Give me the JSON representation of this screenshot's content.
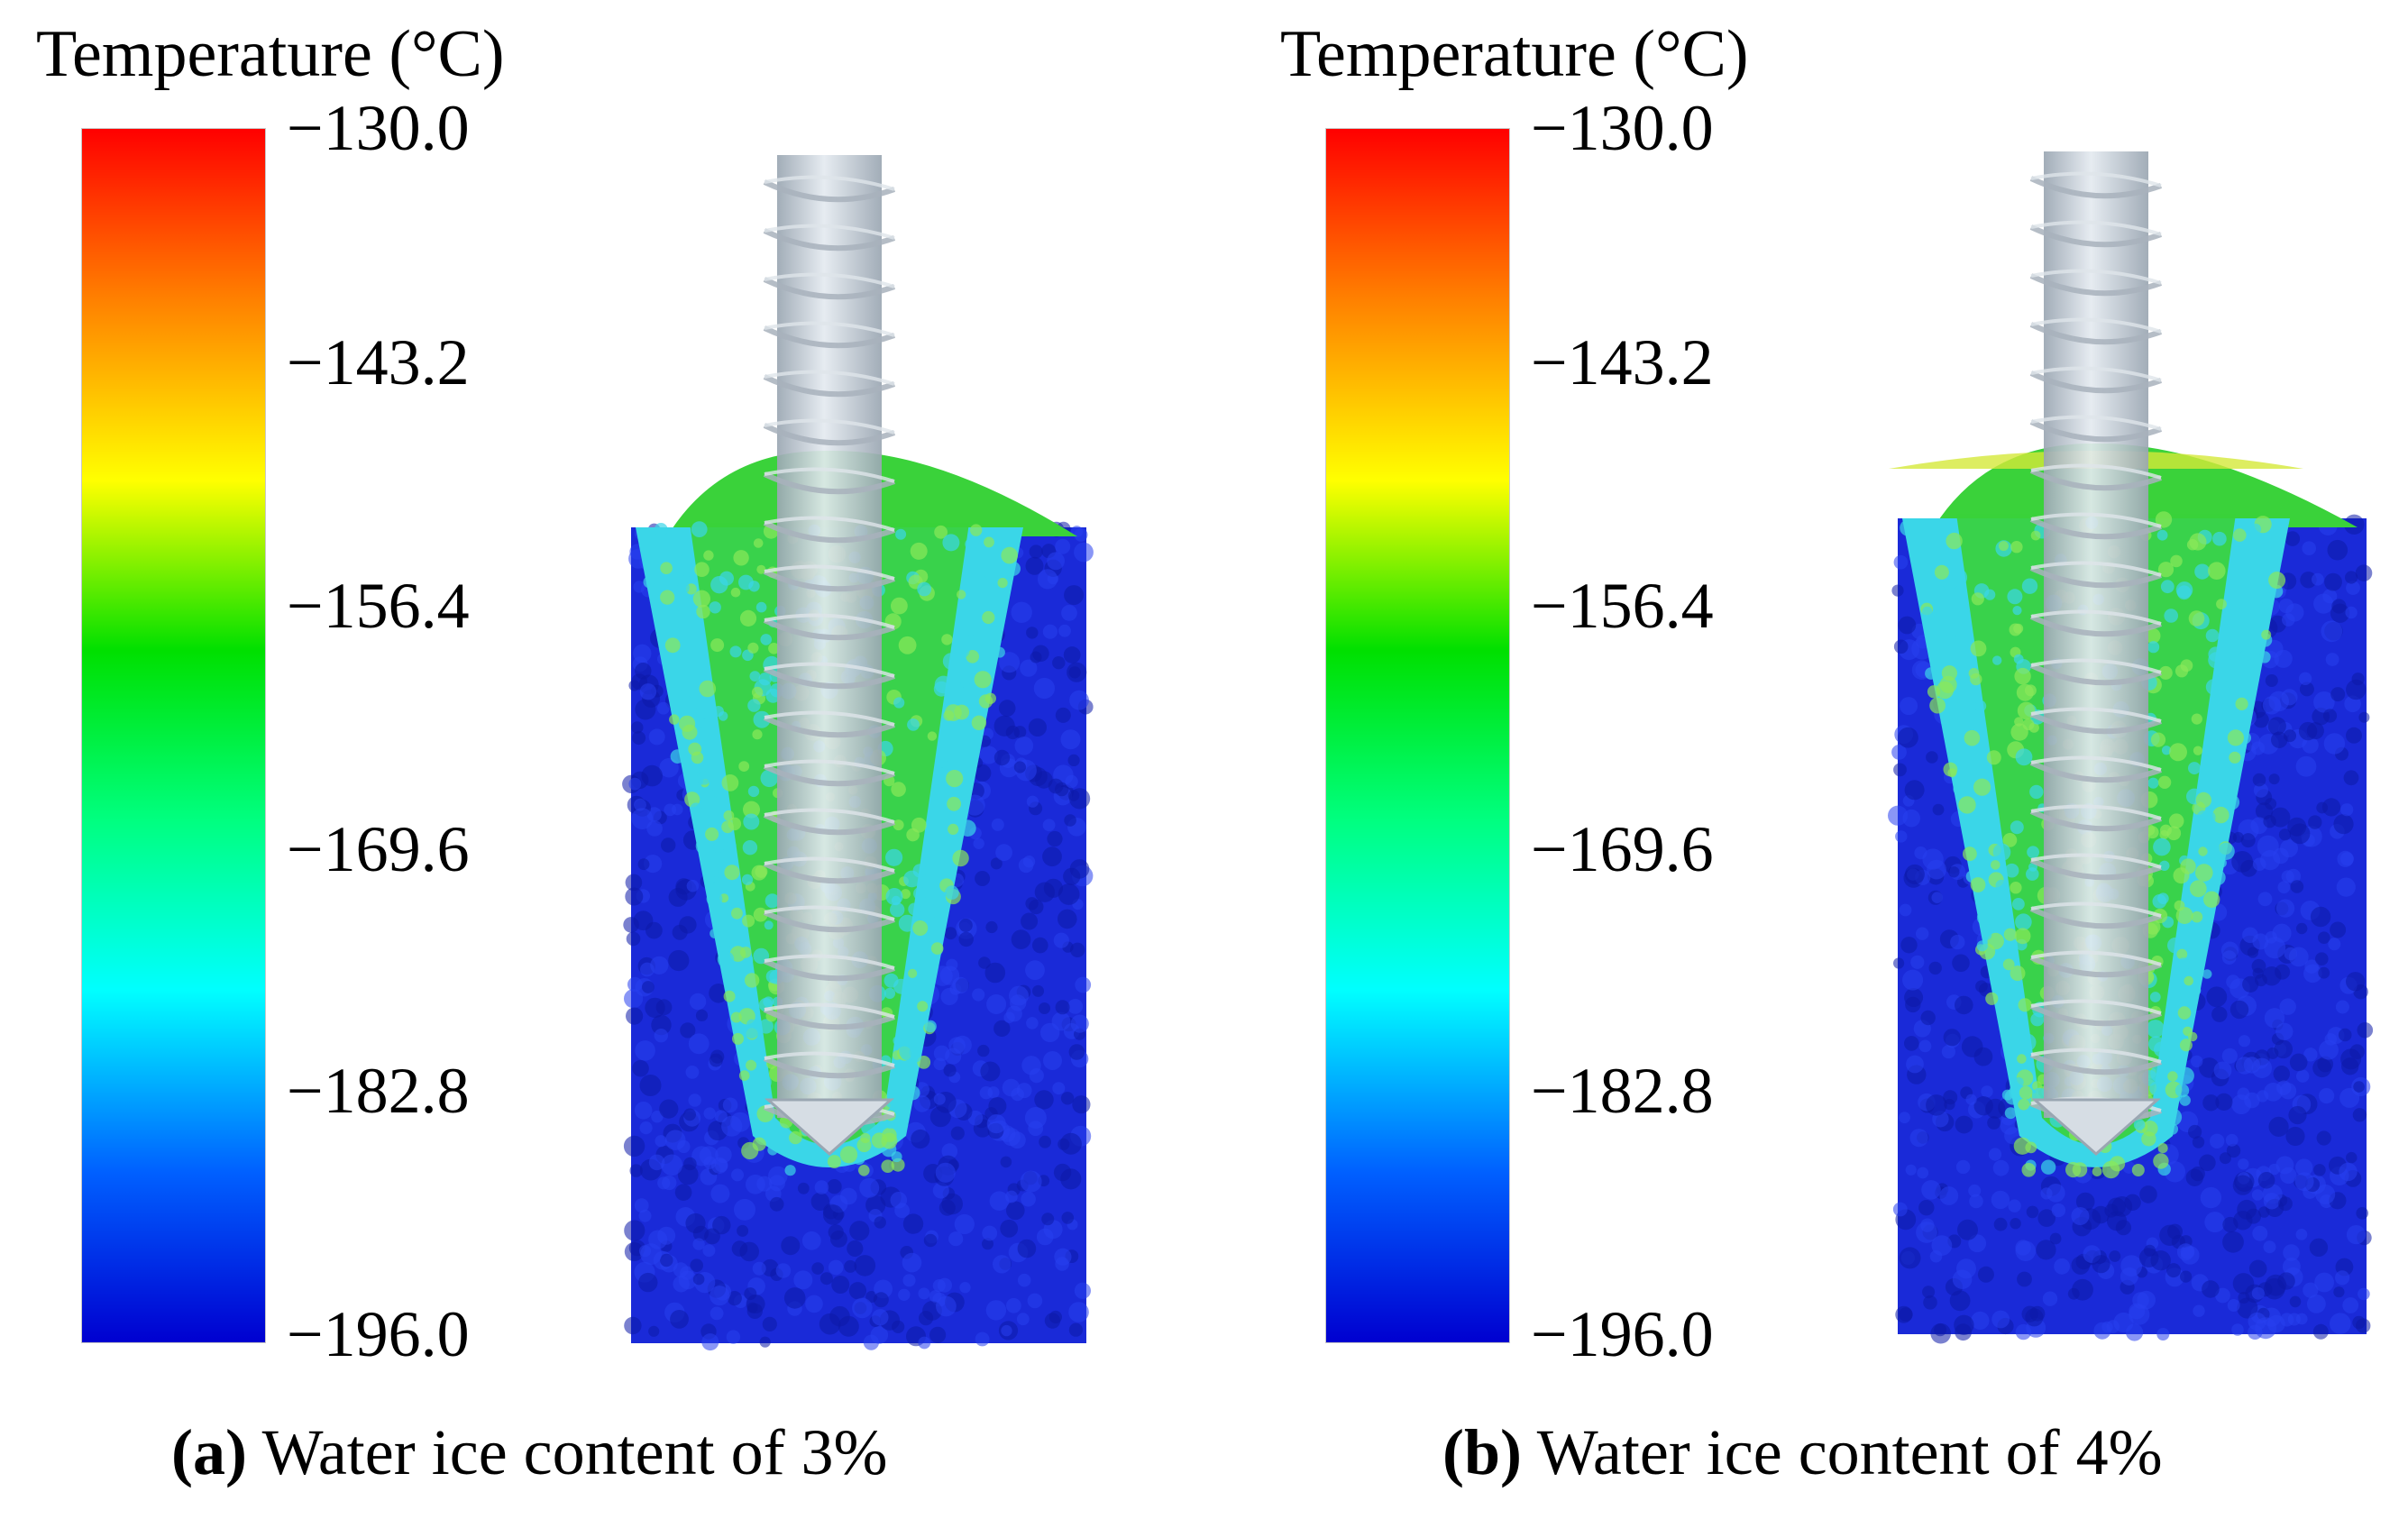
{
  "colorbar_gradient": [
    "#ff0000",
    "#ff8000",
    "#ffff00",
    "#00e000",
    "#00ff80",
    "#00ffff",
    "#0060ff",
    "#0000d0"
  ],
  "particle_colors": {
    "cold": "#1a2ad8",
    "cold_dark": "#0d1aa8",
    "cyan": "#3ad6e8",
    "green": "#3ad23a",
    "yellow": "#d4e83a",
    "shaft": "#c2ccd6",
    "shaft_edge": "#9aa6b2"
  },
  "panels": [
    {
      "title": "Temperature (°C)",
      "ticks": [
        "−130.0",
        "−143.2",
        "−156.4",
        "−169.6",
        "−182.8",
        "−196.0"
      ],
      "caption_letter": "(a)",
      "caption_text": " Water ice content of 3%"
    },
    {
      "title": "Temperature (°C)",
      "ticks": [
        "−130.0",
        "−143.2",
        "−156.4",
        "−169.6",
        "−182.8",
        "−196.0"
      ],
      "caption_letter": "(b)",
      "caption_text": " Water ice content of 4%"
    }
  ]
}
